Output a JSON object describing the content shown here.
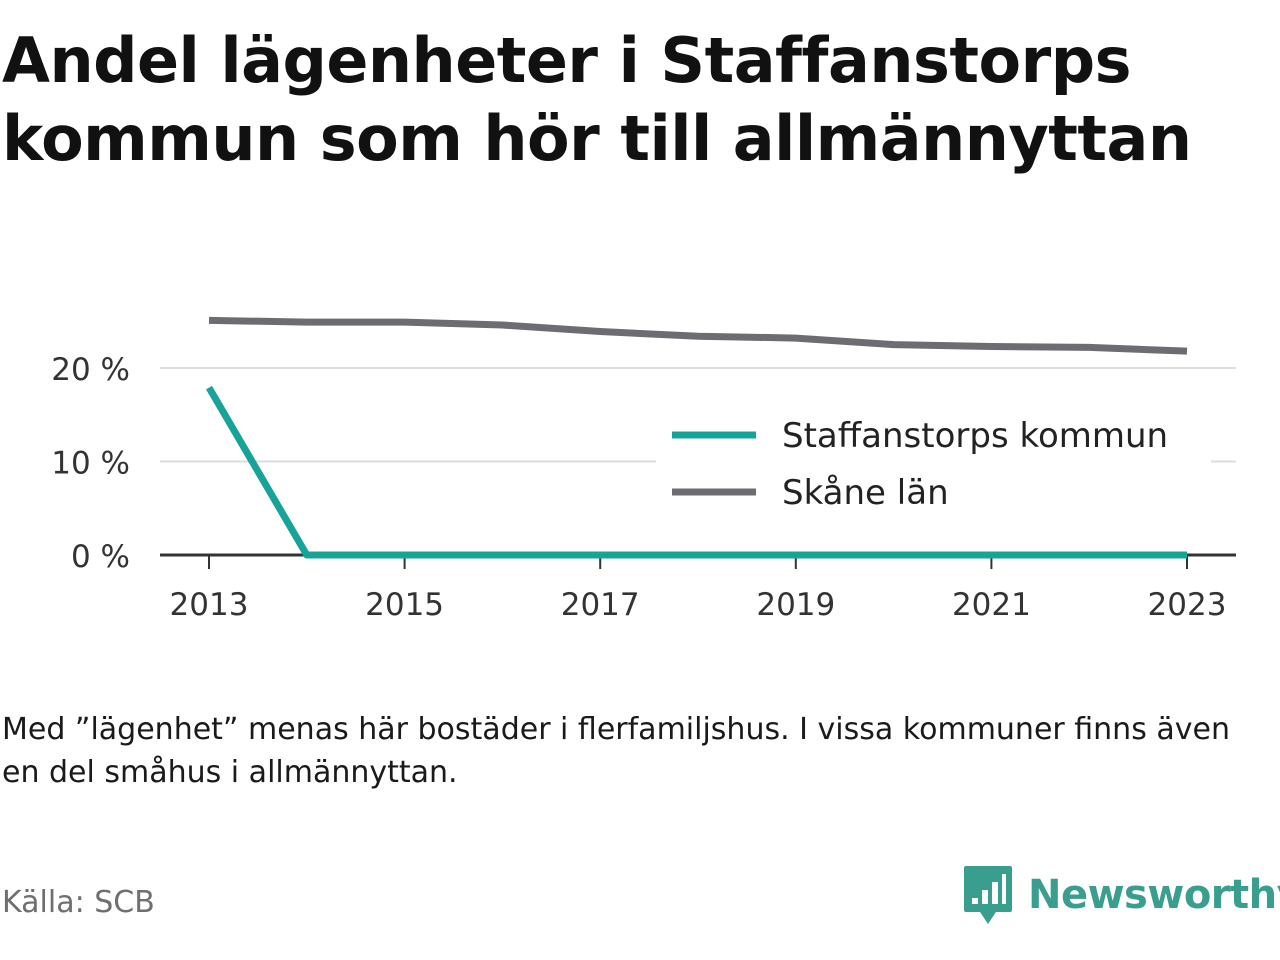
{
  "title": "Andel lägenheter i Staffanstorps kommun som hör till allmännyttan",
  "note": "Med ”lägenhet” menas här bostäder i flerfamiljshus. I vissa kommuner finns även en del småhus i allmännyttan.",
  "source": "Källa: SCB",
  "brand": {
    "name": "Newsworthy",
    "icon": "newsworthy-logo-icon",
    "color": "#3a9e8f"
  },
  "chart_data": {
    "type": "line",
    "x": [
      2013,
      2014,
      2015,
      2016,
      2017,
      2018,
      2019,
      2020,
      2021,
      2022,
      2023
    ],
    "x_ticks": [
      "2013",
      "2015",
      "2017",
      "2019",
      "2021",
      "2023"
    ],
    "y_ticks": [
      "0 %",
      "10 %",
      "20 %"
    ],
    "y_tick_values": [
      0,
      10,
      20
    ],
    "ylim": [
      0,
      26
    ],
    "grid": true,
    "legend_position": "right, inside plot",
    "series": [
      {
        "name": "Staffanstorps kommun",
        "color": "#17a398",
        "values": [
          17.9,
          0,
          0,
          0,
          0,
          0,
          0,
          0,
          0,
          0,
          0
        ]
      },
      {
        "name": "Skåne län",
        "color": "#6d6c72",
        "values": [
          25.1,
          24.9,
          24.9,
          24.6,
          23.9,
          23.4,
          23.2,
          22.5,
          22.3,
          22.2,
          21.8
        ]
      }
    ]
  }
}
